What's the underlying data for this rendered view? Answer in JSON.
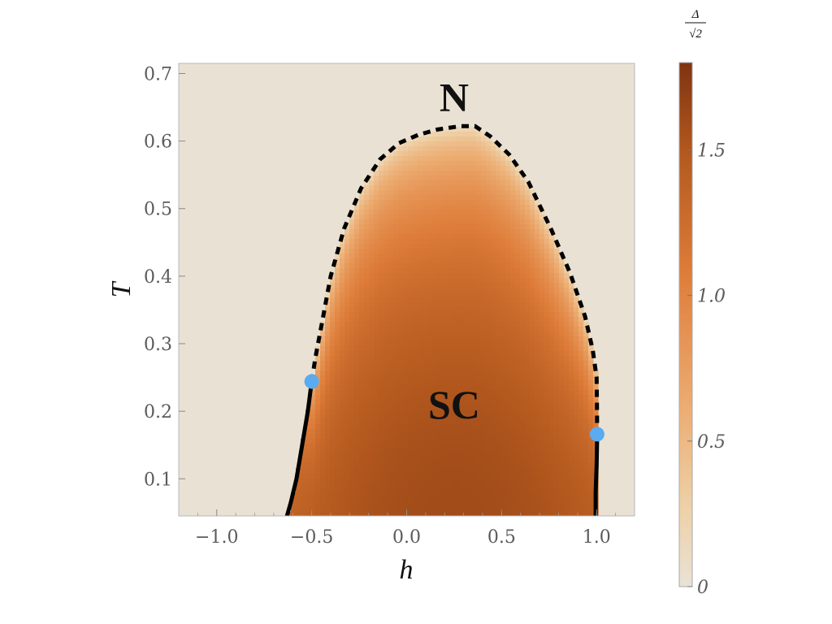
{
  "chart_data": {
    "type": "heatmap",
    "title": "",
    "xlabel": "h",
    "ylabel": "T",
    "xlim": [
      -1.2,
      1.2
    ],
    "ylim": [
      0.045,
      0.715
    ],
    "x_ticks": [
      -1.0,
      -0.5,
      0.0,
      0.5,
      1.0
    ],
    "x_tick_labels": [
      "−1.0",
      "−0.5",
      "0.0",
      "0.5",
      "1.0"
    ],
    "y_ticks": [
      0.1,
      0.2,
      0.3,
      0.4,
      0.5,
      0.6,
      0.7
    ],
    "y_tick_labels": [
      "0.1",
      "0.2",
      "0.3",
      "0.4",
      "0.5",
      "0.6",
      "0.7"
    ],
    "colorbar": {
      "title_numerator": "Δ",
      "title_denominator": "√2",
      "range": [
        0,
        1.8
      ],
      "ticks": [
        0,
        0.5,
        1.0,
        1.5
      ],
      "tick_labels": [
        "0",
        "0.5",
        "1.0",
        "1.5"
      ],
      "color_low": "#e9e2d4",
      "color_mid": "#dc7a38",
      "color_high": "#7f3310"
    },
    "background_color": "#e9e2d4",
    "regions": [
      {
        "label": "N",
        "h": 0.25,
        "T": 0.665
      },
      {
        "label": "SC",
        "h": 0.25,
        "T": 0.21
      }
    ],
    "second_order_boundary": [
      [
        -0.5,
        0.244
      ],
      [
        -0.48,
        0.28
      ],
      [
        -0.44,
        0.34
      ],
      [
        -0.4,
        0.4
      ],
      [
        -0.33,
        0.47
      ],
      [
        -0.24,
        0.53
      ],
      [
        -0.14,
        0.573
      ],
      [
        -0.04,
        0.597
      ],
      [
        0.06,
        0.609
      ],
      [
        0.16,
        0.617
      ],
      [
        0.28,
        0.622
      ],
      [
        0.36,
        0.622
      ],
      [
        0.44,
        0.607
      ],
      [
        0.54,
        0.58
      ],
      [
        0.64,
        0.54
      ],
      [
        0.76,
        0.47
      ],
      [
        0.86,
        0.405
      ],
      [
        0.94,
        0.34
      ],
      [
        0.98,
        0.29
      ],
      [
        1.0,
        0.25
      ],
      [
        1.002,
        0.21
      ],
      [
        1.003,
        0.166
      ]
    ],
    "first_order_boundary_left": [
      [
        -0.5,
        0.244
      ],
      [
        -0.52,
        0.2
      ],
      [
        -0.55,
        0.15
      ],
      [
        -0.58,
        0.1
      ],
      [
        -0.61,
        0.065
      ],
      [
        -0.63,
        0.045
      ]
    ],
    "first_order_boundary_right": [
      [
        1.003,
        0.166
      ],
      [
        1.0,
        0.12
      ],
      [
        0.995,
        0.08
      ],
      [
        0.995,
        0.045
      ]
    ],
    "tricritical_points": [
      {
        "h": -0.5,
        "T": 0.244,
        "color": "#5aabf0"
      },
      {
        "h": 1.003,
        "T": 0.166,
        "color": "#5aabf0"
      }
    ],
    "gap_center_h": 0.25,
    "gap_max": 1.6
  }
}
